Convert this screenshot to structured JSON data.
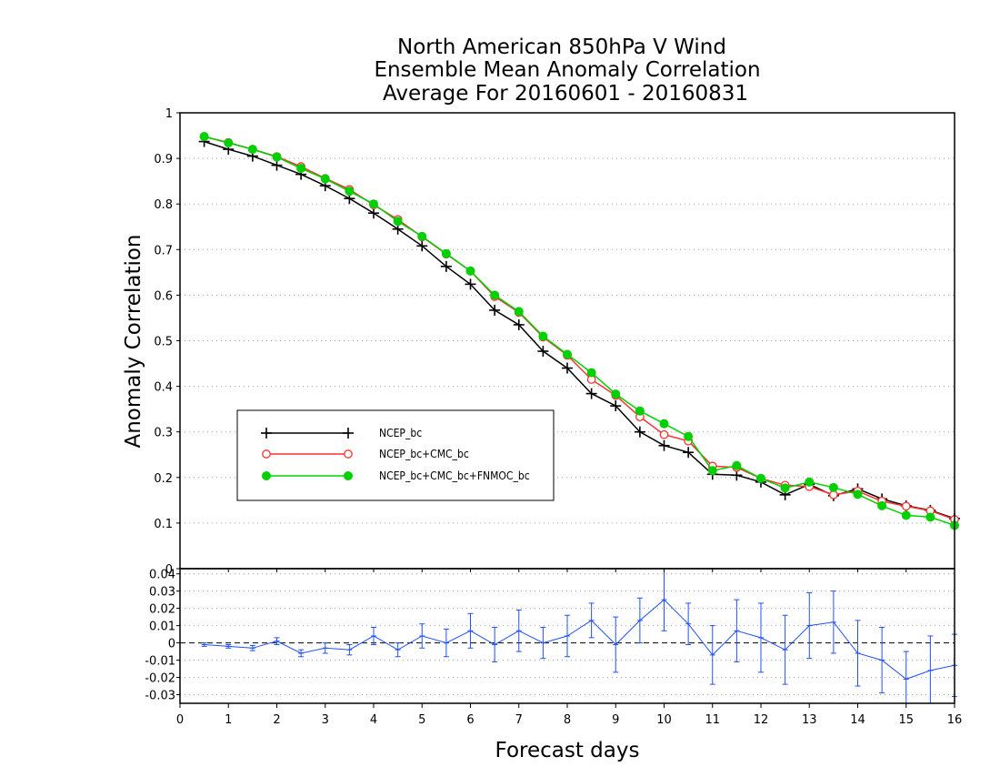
{
  "chart_data": {
    "type": "line",
    "title_lines": [
      "North American 850hPa V Wind",
      "Ensemble Mean Anomaly Correlation",
      "Average For 20160601 - 20160831"
    ],
    "xlabel": "Forecast days",
    "ylabel": "Anomaly Correlation",
    "xlim": [
      0,
      16
    ],
    "x_ticks": [
      "0",
      "1",
      "2",
      "3",
      "4",
      "5",
      "6",
      "7",
      "8",
      "9",
      "10",
      "11",
      "12",
      "13",
      "14",
      "15",
      "16"
    ],
    "upper": {
      "ylim": [
        0,
        1
      ],
      "y_ticks": [
        "0",
        "0.1",
        "0.2",
        "0.3",
        "0.4",
        "0.5",
        "0.6",
        "0.7",
        "0.8",
        "0.9",
        "1"
      ],
      "grid": true,
      "legend_position": "center-left",
      "x": [
        0.5,
        1,
        1.5,
        2,
        2.5,
        3,
        3.5,
        4,
        4.5,
        5,
        5.5,
        6,
        6.5,
        7,
        7.5,
        8,
        8.5,
        9,
        9.5,
        10,
        10.5,
        11,
        11.5,
        12,
        12.5,
        13,
        13.5,
        14,
        14.5,
        15,
        15.5,
        16
      ],
      "series": [
        {
          "name": "NCEP_bc",
          "color": "#000000",
          "marker": "plus",
          "values": [
            0.937,
            0.92,
            0.905,
            0.885,
            0.865,
            0.84,
            0.812,
            0.78,
            0.745,
            0.708,
            0.663,
            0.624,
            0.567,
            0.535,
            0.477,
            0.44,
            0.384,
            0.357,
            0.3,
            0.27,
            0.255,
            0.207,
            0.205,
            0.19,
            0.162,
            0.185,
            0.16,
            0.175,
            0.153,
            0.138,
            0.128,
            0.11
          ]
        },
        {
          "name": "NCEP_bc+CMC_bc",
          "color": "#ff3030",
          "marker": "open-circle",
          "values": [
            0.948,
            0.935,
            0.92,
            0.904,
            0.882,
            0.856,
            0.832,
            0.798,
            0.766,
            0.728,
            0.69,
            0.653,
            0.597,
            0.562,
            0.508,
            0.468,
            0.415,
            0.38,
            0.333,
            0.294,
            0.28,
            0.225,
            0.222,
            0.198,
            0.183,
            0.18,
            0.162,
            0.17,
            0.148,
            0.137,
            0.127,
            0.108
          ]
        },
        {
          "name": "NCEP_bc+CMC_bc+FNMOC_bc",
          "color": "#00d000",
          "marker": "filled-circle",
          "values": [
            0.948,
            0.934,
            0.92,
            0.903,
            0.878,
            0.855,
            0.828,
            0.8,
            0.762,
            0.729,
            0.691,
            0.653,
            0.6,
            0.564,
            0.51,
            0.47,
            0.43,
            0.383,
            0.346,
            0.318,
            0.29,
            0.215,
            0.226,
            0.198,
            0.177,
            0.19,
            0.178,
            0.163,
            0.138,
            0.117,
            0.113,
            0.095
          ]
        }
      ]
    },
    "lower": {
      "ylim": [
        -0.035,
        0.043
      ],
      "y_ticks": [
        "-0.03",
        "-0.02",
        "-0.01",
        "0",
        "0.01",
        "0.02",
        "0.03",
        "0.04"
      ],
      "grid": true,
      "zero_line": "dashed",
      "color": "#2050ff",
      "x": [
        0.5,
        1,
        1.5,
        2,
        2.5,
        3,
        3.5,
        4,
        4.5,
        5,
        5.5,
        6,
        6.5,
        7,
        7.5,
        8,
        8.5,
        9,
        9.5,
        10,
        10.5,
        11,
        11.5,
        12,
        12.5,
        13,
        13.5,
        14,
        14.5,
        15,
        15.5,
        16
      ],
      "values": [
        -0.001,
        -0.002,
        -0.003,
        0.001,
        -0.006,
        -0.003,
        -0.004,
        0.004,
        -0.004,
        0.004,
        0.0,
        0.007,
        -0.001,
        0.007,
        0.0,
        0.004,
        0.013,
        -0.001,
        0.013,
        0.025,
        0.011,
        -0.007,
        0.007,
        0.003,
        -0.004,
        0.01,
        0.012,
        -0.006,
        -0.01,
        -0.021,
        -0.016,
        -0.013
      ],
      "errors": [
        0.001,
        0.001,
        0.0015,
        0.002,
        0.002,
        0.003,
        0.003,
        0.005,
        0.004,
        0.007,
        0.008,
        0.01,
        0.01,
        0.012,
        0.009,
        0.012,
        0.01,
        0.016,
        0.013,
        0.018,
        0.012,
        0.017,
        0.018,
        0.02,
        0.02,
        0.019,
        0.018,
        0.019,
        0.019,
        0.016,
        0.02,
        0.018
      ]
    }
  }
}
